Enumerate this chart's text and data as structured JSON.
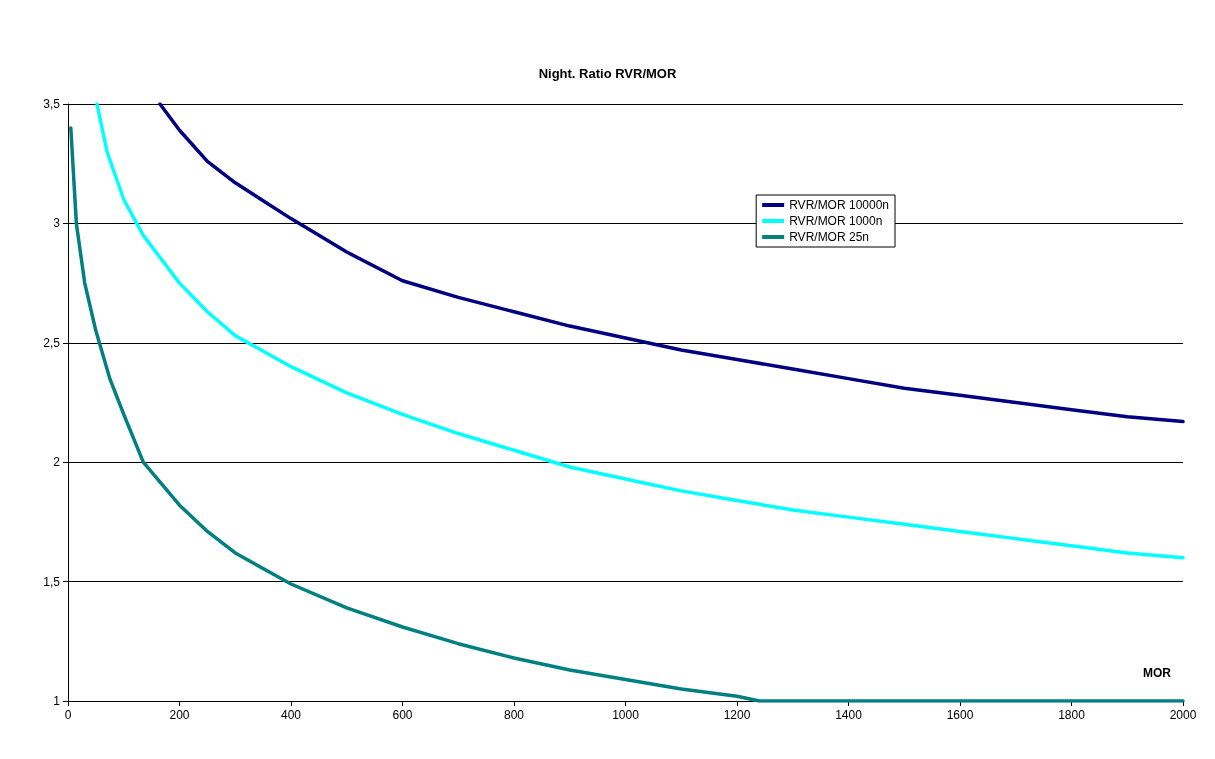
{
  "chart_data": {
    "type": "line",
    "title": "Night. Ratio RVR/MOR",
    "xlabel": "MOR",
    "xlim": [
      0,
      2000
    ],
    "xticks": [
      0,
      200,
      400,
      600,
      800,
      1000,
      1200,
      1400,
      1600,
      1800,
      2000
    ],
    "ylim": [
      1,
      3.5
    ],
    "yticks": [
      1,
      {
        "value": 1.5,
        "label": "1,5"
      },
      2,
      {
        "value": 2.5,
        "label": "2,5"
      },
      3,
      {
        "value": 3.5,
        "label": "3,5"
      }
    ],
    "grid": "y",
    "legend": "top right",
    "marker": "none",
    "line_style": "solid",
    "series": [
      {
        "name": "RVR/MOR 10000n",
        "color": "#000080",
        "x": [
          165,
          200,
          250,
          300,
          400,
          500,
          600,
          700,
          800,
          900,
          1000,
          1100,
          1200,
          1300,
          1400,
          1500,
          1600,
          1700,
          1800,
          1900,
          2000
        ],
        "values": [
          3.5,
          3.39,
          3.26,
          3.17,
          3.02,
          2.88,
          2.76,
          2.69,
          2.63,
          2.57,
          2.52,
          2.47,
          2.43,
          2.39,
          2.35,
          2.31,
          2.28,
          2.25,
          2.22,
          2.19,
          2.17
        ]
      },
      {
        "name": "RVR/MOR 1000n",
        "color": "#00ffff",
        "x": [
          52,
          70,
          100,
          135,
          200,
          250,
          300,
          400,
          500,
          600,
          700,
          800,
          900,
          1000,
          1100,
          1200,
          1300,
          1400,
          1500,
          1600,
          1700,
          1800,
          1900,
          2000
        ],
        "values": [
          3.5,
          3.3,
          3.1,
          2.95,
          2.75,
          2.63,
          2.53,
          2.4,
          2.29,
          2.2,
          2.12,
          2.05,
          1.98,
          1.93,
          1.88,
          1.84,
          1.8,
          1.77,
          1.74,
          1.71,
          1.68,
          1.65,
          1.62,
          1.6
        ]
      },
      {
        "name": "RVR/MOR 25n",
        "color": "#008080",
        "x": [
          5,
          15,
          30,
          50,
          75,
          100,
          135,
          200,
          250,
          300,
          400,
          500,
          600,
          700,
          800,
          900,
          1000,
          1100,
          1200,
          1240,
          1400,
          1600,
          1800,
          2000
        ],
        "values": [
          3.4,
          3.0,
          2.75,
          2.55,
          2.35,
          2.2,
          2.0,
          1.82,
          1.71,
          1.62,
          1.49,
          1.39,
          1.31,
          1.24,
          1.18,
          1.13,
          1.09,
          1.05,
          1.02,
          1.0,
          1.0,
          1.0,
          1.0,
          1.0
        ]
      }
    ]
  }
}
